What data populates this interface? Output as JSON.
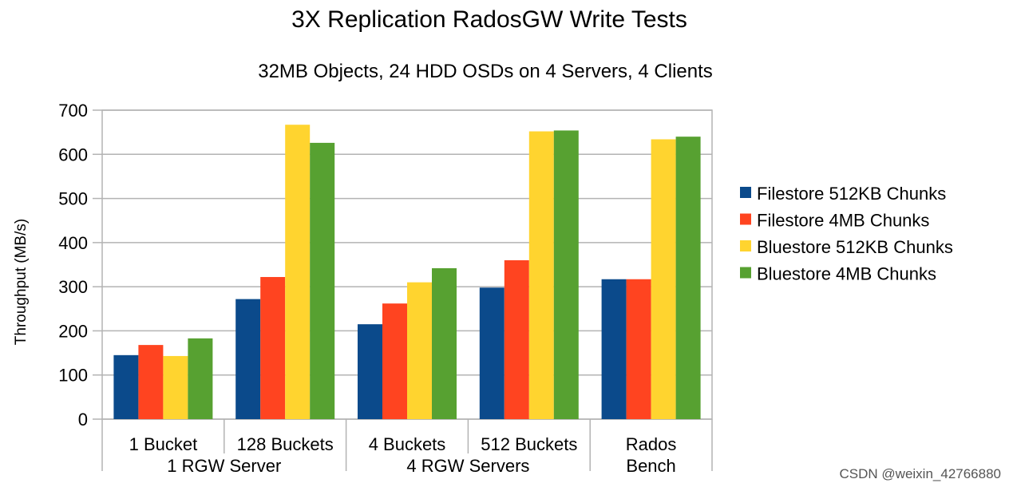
{
  "chart_data": {
    "type": "bar",
    "title": "3X Replication RadosGW Write Tests",
    "subtitle": "32MB Objects, 24 HDD OSDs on 4 Servers, 4 Clients",
    "ylabel": "Throughput (MB/s)",
    "xlabel": "",
    "ylim": [
      0,
      700
    ],
    "yticks": [
      0,
      100,
      200,
      300,
      400,
      500,
      600,
      700
    ],
    "grid": true,
    "legend_position": "right",
    "categories": [
      "1 Bucket",
      "128 Buckets",
      "4 Buckets",
      "512 Buckets",
      "Rados Bench"
    ],
    "category_lines": [
      [
        "1 Bucket"
      ],
      [
        "128 Buckets"
      ],
      [
        "4 Buckets"
      ],
      [
        "512 Buckets"
      ],
      [
        "Rados",
        "Bench"
      ]
    ],
    "groups": [
      {
        "label": "1 RGW Server",
        "categories": [
          0,
          1
        ]
      },
      {
        "label": "4 RGW Servers",
        "categories": [
          2,
          3
        ]
      }
    ],
    "series": [
      {
        "name": "Filestore 512KB Chunks",
        "color": "#0b4a8b",
        "values": [
          145,
          272,
          215,
          298,
          317
        ]
      },
      {
        "name": "Filestore 4MB Chunks",
        "color": "#ff4420",
        "values": [
          168,
          322,
          262,
          360,
          317
        ]
      },
      {
        "name": "Bluestore 512KB Chunks",
        "color": "#ffd42f",
        "values": [
          143,
          667,
          310,
          652,
          634
        ]
      },
      {
        "name": "Bluestore 4MB Chunks",
        "color": "#57a131",
        "values": [
          183,
          626,
          342,
          654,
          640
        ]
      }
    ]
  },
  "watermark": "CSDN @weixin_42766880"
}
